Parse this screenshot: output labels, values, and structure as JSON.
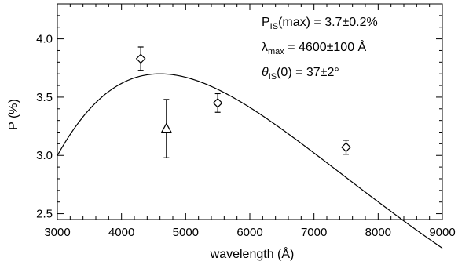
{
  "chart_data": {
    "type": "scatter",
    "title": "",
    "xlabel": "wavelength (Å)",
    "ylabel": "P (%)",
    "xlim": [
      3000,
      9000
    ],
    "ylim": [
      2.45,
      4.3
    ],
    "x_ticks": [
      3000,
      4000,
      5000,
      6000,
      7000,
      8000,
      9000
    ],
    "y_ticks": [
      2.5,
      3.0,
      3.5,
      4.0
    ],
    "x_minor_step": 200,
    "y_minor_step": 0.1,
    "grid": false,
    "serkowski_fit": {
      "p_max": 3.7,
      "lambda_max": 4600,
      "K": 1.15
    },
    "series": [
      {
        "marker": "diamond",
        "points": [
          {
            "x": 4300,
            "y": 3.83,
            "yerr": 0.1
          },
          {
            "x": 5500,
            "y": 3.45,
            "yerr": 0.08
          },
          {
            "x": 7500,
            "y": 3.07,
            "yerr": 0.06
          }
        ]
      },
      {
        "marker": "triangle",
        "points": [
          {
            "x": 4700,
            "y": 3.23,
            "yerr": 0.25
          }
        ]
      }
    ],
    "annotations": {
      "line1": {
        "sym": "P",
        "sub": "IS",
        "rest": "(max)  =  3.7±0.2%"
      },
      "line2": {
        "sym": "λ",
        "sub": "max",
        "rest": "  =  4600±100  Å"
      },
      "line3": {
        "sym": "θ",
        "sub": "IS",
        "rest": "(0)  =  37±2°"
      }
    }
  }
}
